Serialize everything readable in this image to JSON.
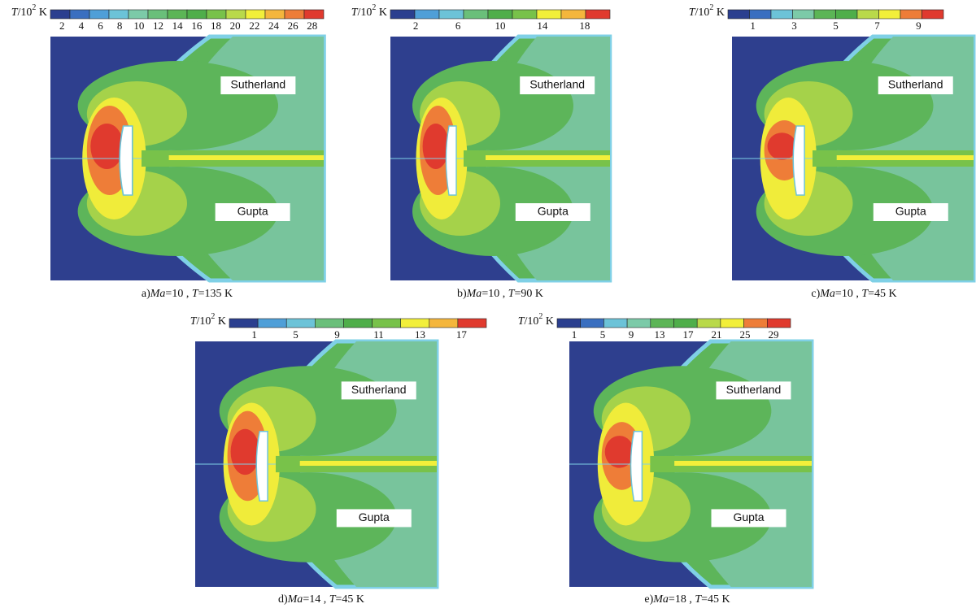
{
  "colorbar_label": {
    "var": "T",
    "base": "/10",
    "exponent": "2",
    "unit": " K"
  },
  "region_labels": {
    "upper": "Sutherland",
    "lower": "Gupta"
  },
  "panels": [
    {
      "label": "a)",
      "caption": [
        "Ma",
        "=10 , ",
        "T",
        "=135 K"
      ],
      "ticks": [
        2,
        4,
        6,
        8,
        10,
        12,
        14,
        16,
        18,
        20,
        22,
        24,
        26,
        28
      ]
    },
    {
      "label": "b)",
      "caption": [
        "Ma",
        "=10 , ",
        "T",
        "=90 K"
      ],
      "ticks": [
        2,
        6,
        10,
        14,
        18
      ]
    },
    {
      "label": "c)",
      "caption": [
        "Ma",
        "=10 , ",
        "T",
        "=45 K"
      ],
      "ticks": [
        1,
        3,
        5,
        7,
        9
      ]
    },
    {
      "label": "d)",
      "caption": [
        "Ma",
        "=14 , ",
        "T",
        "=45 K"
      ],
      "ticks": [
        1,
        5,
        9,
        11,
        13,
        17
      ]
    },
    {
      "label": "e)",
      "caption": [
        "Ma",
        "=18 , ",
        "T",
        "=45 K"
      ],
      "ticks": [
        1,
        5,
        9,
        13,
        17,
        21,
        25,
        29
      ]
    }
  ]
}
